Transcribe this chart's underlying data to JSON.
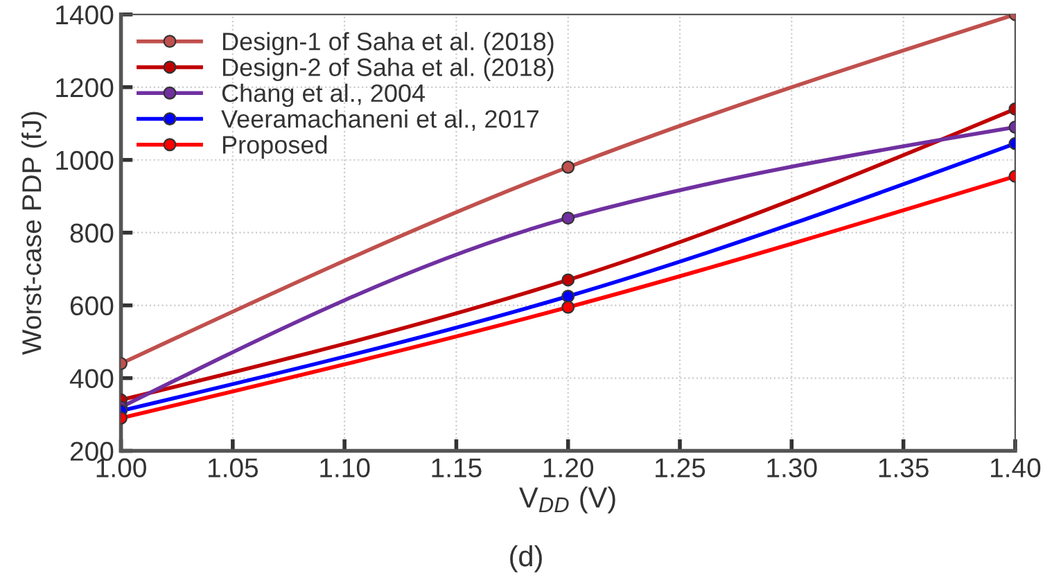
{
  "chart_data": {
    "type": "line",
    "xlabel": "V$_{DD}$ (V)",
    "ylabel": "Worst-case PDP (fJ)",
    "annotations": [
      "(d)"
    ],
    "x": [
      1.0,
      1.2,
      1.4
    ],
    "series": [
      {
        "name": "Design-1 of Saha et al. (2018)",
        "color": "#c0504d",
        "values": [
          440,
          980,
          1400
        ]
      },
      {
        "name": "Design-2 of Saha et al. (2018)",
        "color": "#c00000",
        "values": [
          340,
          670,
          1140
        ]
      },
      {
        "name": "Chang et al., 2004",
        "color": "#7030a0",
        "values": [
          320,
          840,
          1090
        ]
      },
      {
        "name": "Veeramachaneni et al., 2017",
        "color": "#0000ff",
        "values": [
          310,
          625,
          1045
        ]
      },
      {
        "name": "Proposed",
        "color": "#ff0000",
        "values": [
          290,
          595,
          955
        ]
      }
    ],
    "xlim": [
      1.0,
      1.4
    ],
    "ylim": [
      200,
      1400
    ],
    "xticks": [
      {
        "value": 1.0,
        "label": "1.00"
      },
      {
        "value": 1.05,
        "label": "1.05"
      },
      {
        "value": 1.1,
        "label": "1.10"
      },
      {
        "value": 1.15,
        "label": "1.15"
      },
      {
        "value": 1.2,
        "label": "1.20"
      },
      {
        "value": 1.25,
        "label": "1.25"
      },
      {
        "value": 1.3,
        "label": "1.30"
      },
      {
        "value": 1.35,
        "label": "1.35"
      },
      {
        "value": 1.4,
        "label": "1.40"
      }
    ],
    "yticks": [
      200,
      400,
      600,
      800,
      1000,
      1200,
      1400
    ],
    "grid": true,
    "legend": "top left",
    "marker": "circle",
    "line_style": "solid"
  }
}
